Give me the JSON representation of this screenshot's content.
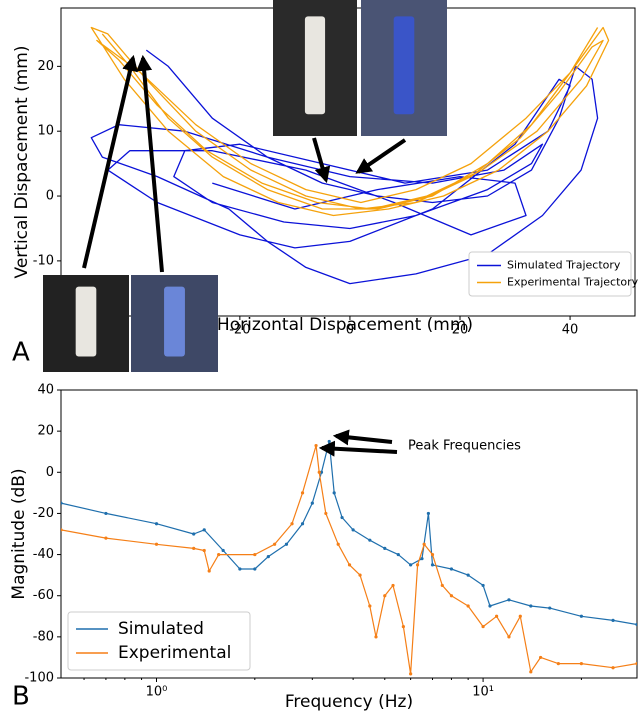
{
  "chart_data": [
    {
      "type": "line",
      "panel_label": "A",
      "xlabel": "Horizontal Dispacement (mm)",
      "ylabel": "Vertical Dispacement (mm)",
      "xlim": [
        -52.5,
        51.8
      ],
      "ylim": [
        -18.5,
        29
      ],
      "xticks": [
        -20,
        0,
        20,
        40
      ],
      "yticks": [
        -10,
        0,
        10,
        20
      ],
      "legend": "lower right",
      "series": [
        {
          "name": "Simulated Trajectory",
          "color": "#0b12d8",
          "x": [
            -37,
            -33,
            -25,
            -15,
            -5,
            5,
            15,
            25,
            33,
            38,
            41,
            44,
            45,
            42,
            35,
            25,
            12,
            0,
            -8,
            -15,
            -22,
            -35,
            -45,
            -47,
            -42,
            -30,
            -15,
            0,
            15,
            28,
            35,
            33,
            25,
            12,
            0,
            -12,
            -25,
            -32,
            -30,
            -20,
            -5,
            10,
            25,
            36,
            40,
            38,
            30,
            15,
            0,
            -10,
            -20,
            -35,
            -44,
            -40,
            -25,
            -8,
            8,
            22,
            32,
            30,
            20,
            5,
            -10,
            -25
          ],
          "values": [
            22.5,
            20,
            12,
            6,
            2,
            0,
            -1,
            0,
            4,
            12,
            20,
            18,
            12,
            4,
            -3,
            -9,
            -12,
            -13.5,
            -11,
            -7,
            -2,
            3,
            6,
            9,
            11,
            10,
            6,
            3,
            2,
            4,
            8,
            5,
            1,
            -3,
            -5,
            -4,
            -1,
            3,
            7,
            8,
            5,
            2,
            4,
            10,
            17,
            18,
            8,
            -2,
            -7,
            -8,
            -6,
            -1,
            4,
            7,
            7,
            4,
            -1,
            -6,
            -3,
            2,
            3,
            1,
            -2,
            2
          ]
        },
        {
          "name": "Experimental Trajectory",
          "color": "#f5a20c",
          "x": [
            -45,
            -40,
            -33,
            -25,
            -15,
            -5,
            5,
            15,
            25,
            33,
            40,
            46,
            47,
            43,
            36,
            27,
            17,
            7,
            -3,
            -13,
            -23,
            -33,
            -41,
            -47,
            -44,
            -37,
            -28,
            -18,
            -8,
            2,
            12,
            22,
            31,
            38,
            44,
            46,
            42,
            34,
            24,
            14,
            4,
            -6,
            -16,
            -26,
            -35,
            -42,
            -46,
            -38,
            -28,
            -18,
            -8,
            2,
            12,
            22,
            32,
            40,
            45
          ],
          "values": [
            25,
            20,
            12,
            6,
            1,
            -2,
            -2,
            0,
            5,
            11,
            19,
            26,
            24,
            17,
            10,
            4,
            0,
            -2,
            -3,
            -1,
            3,
            10,
            18,
            26,
            25,
            18,
            10,
            4,
            0,
            -2,
            -1,
            3,
            9,
            16,
            23,
            24,
            18,
            10,
            4,
            0,
            -2,
            -1,
            2,
            7,
            14,
            21,
            24,
            19,
            11,
            5,
            1,
            -1,
            1,
            5,
            12,
            19,
            26
          ]
        }
      ]
    },
    {
      "type": "line",
      "panel_label": "B",
      "xlabel": "Frequency (Hz)",
      "ylabel": "Magnitude (dB)",
      "xlog": true,
      "xlim": [
        0.51,
        29.6
      ],
      "ylim": [
        -100,
        40
      ],
      "xticks": [
        {
          "value": 1,
          "label": "10⁰"
        },
        {
          "value": 10,
          "label": "10¹"
        }
      ],
      "yticks": [
        -100,
        -80,
        -60,
        -40,
        -20,
        0,
        20,
        40
      ],
      "legend": "lower left",
      "annotation": "Peak Frequencies",
      "series": [
        {
          "name": "Simulated",
          "color": "#1f6fad",
          "x": [
            0.51,
            0.7,
            1.0,
            1.3,
            1.4,
            1.6,
            1.8,
            2.0,
            2.2,
            2.5,
            2.8,
            3.0,
            3.2,
            3.38,
            3.5,
            3.7,
            4.0,
            4.5,
            5.0,
            5.5,
            6.0,
            6.5,
            6.8,
            7.0,
            8.0,
            9.0,
            10,
            10.5,
            12,
            14,
            16,
            20,
            25,
            29.6
          ],
          "values": [
            -15,
            -20,
            -25,
            -30,
            -28,
            -38,
            -47,
            -47,
            -41,
            -35,
            -25,
            -15,
            0,
            15,
            -10,
            -22,
            -28,
            -33,
            -37,
            -40,
            -45,
            -42,
            -20,
            -45,
            -47,
            -50,
            -55,
            -65,
            -62,
            -65,
            -66,
            -70,
            -72,
            -74
          ]
        },
        {
          "name": "Experimental",
          "color": "#f57f17",
          "x": [
            0.51,
            0.7,
            1.0,
            1.3,
            1.4,
            1.45,
            1.55,
            2.0,
            2.3,
            2.6,
            2.8,
            3.08,
            3.15,
            3.3,
            3.6,
            3.9,
            4.2,
            4.5,
            4.7,
            5.0,
            5.3,
            5.7,
            6.0,
            6.3,
            6.6,
            7.0,
            7.5,
            8.0,
            9.0,
            10,
            11,
            12,
            13,
            14,
            15,
            17,
            20,
            25,
            29.6
          ],
          "values": [
            -28,
            -32,
            -35,
            -37,
            -38,
            -48,
            -40,
            -40,
            -35,
            -25,
            -10,
            13,
            0,
            -20,
            -35,
            -45,
            -50,
            -65,
            -80,
            -60,
            -55,
            -75,
            -98,
            -45,
            -35,
            -40,
            -55,
            -60,
            -65,
            -75,
            -70,
            -80,
            -70,
            -97,
            -90,
            -93,
            -93,
            -95,
            -93
          ]
        }
      ]
    }
  ]
}
